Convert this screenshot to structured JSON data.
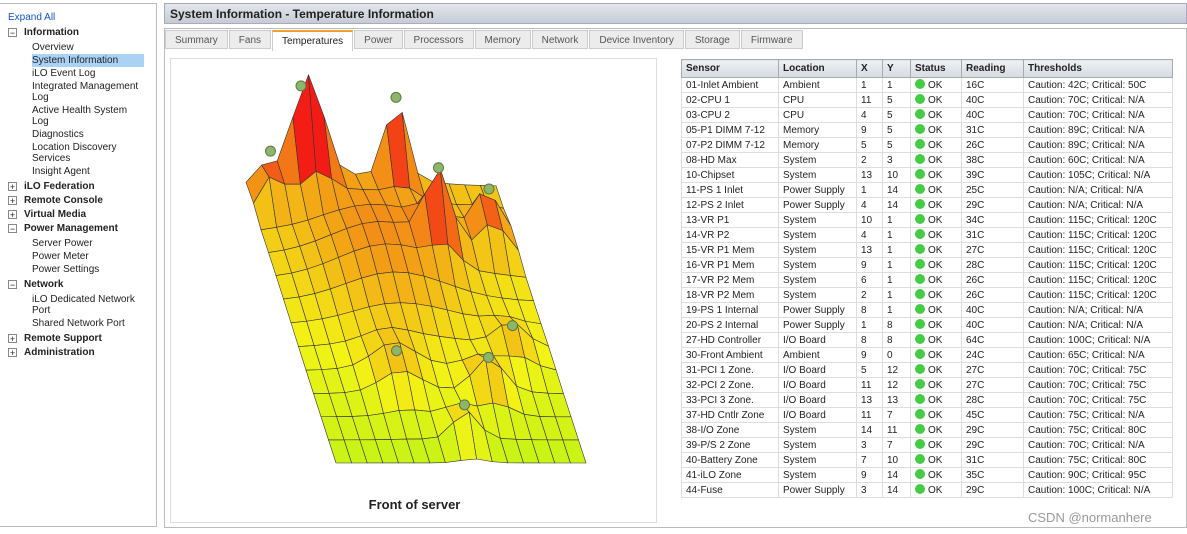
{
  "sidebar": {
    "expand_all": "Expand All",
    "sections": [
      {
        "title": "Information",
        "expanded": true,
        "items": [
          {
            "label": "Overview"
          },
          {
            "label": "System Information",
            "selected": true
          },
          {
            "label": "iLO Event Log"
          },
          {
            "label": "Integrated Management Log"
          },
          {
            "label": "Active Health System Log"
          },
          {
            "label": "Diagnostics"
          },
          {
            "label": "Location Discovery Services"
          },
          {
            "label": "Insight Agent"
          }
        ]
      },
      {
        "title": "iLO Federation",
        "expanded": false,
        "items": []
      },
      {
        "title": "Remote Console",
        "expanded": false,
        "items": []
      },
      {
        "title": "Virtual Media",
        "expanded": false,
        "items": []
      },
      {
        "title": "Power Management",
        "expanded": true,
        "items": [
          {
            "label": "Server Power"
          },
          {
            "label": "Power Meter"
          },
          {
            "label": "Power Settings"
          }
        ]
      },
      {
        "title": "Network",
        "expanded": true,
        "items": [
          {
            "label": "iLO Dedicated Network Port"
          },
          {
            "label": "Shared Network Port"
          }
        ]
      },
      {
        "title": "Remote Support",
        "expanded": false,
        "items": []
      },
      {
        "title": "Administration",
        "expanded": false,
        "items": []
      }
    ]
  },
  "header": {
    "title": "System Information - Temperature Information"
  },
  "tabs": [
    {
      "label": "Summary"
    },
    {
      "label": "Fans"
    },
    {
      "label": "Temperatures",
      "active": true
    },
    {
      "label": "Power"
    },
    {
      "label": "Processors"
    },
    {
      "label": "Memory"
    },
    {
      "label": "Network"
    },
    {
      "label": "Device Inventory"
    },
    {
      "label": "Storage"
    },
    {
      "label": "Firmware"
    }
  ],
  "graph": {
    "caption": "Front of server"
  },
  "table": {
    "columns": [
      "Sensor",
      "Location",
      "X",
      "Y",
      "Status",
      "Reading",
      "Thresholds"
    ],
    "rows": [
      [
        "01-Inlet Ambient",
        "Ambient",
        1,
        1,
        "OK",
        "16C",
        "Caution: 42C; Critical: 50C"
      ],
      [
        "02-CPU 1",
        "CPU",
        11,
        5,
        "OK",
        "40C",
        "Caution: 70C; Critical: N/A"
      ],
      [
        "03-CPU 2",
        "CPU",
        4,
        5,
        "OK",
        "40C",
        "Caution: 70C; Critical: N/A"
      ],
      [
        "05-P1 DIMM 7-12",
        "Memory",
        9,
        5,
        "OK",
        "31C",
        "Caution: 89C; Critical: N/A"
      ],
      [
        "07-P2 DIMM 7-12",
        "Memory",
        5,
        5,
        "OK",
        "26C",
        "Caution: 89C; Critical: N/A"
      ],
      [
        "08-HD Max",
        "System",
        2,
        3,
        "OK",
        "38C",
        "Caution: 60C; Critical: N/A"
      ],
      [
        "10-Chipset",
        "System",
        13,
        10,
        "OK",
        "39C",
        "Caution: 105C; Critical: N/A"
      ],
      [
        "11-PS 1 Inlet",
        "Power Supply",
        1,
        14,
        "OK",
        "25C",
        "Caution: N/A; Critical: N/A"
      ],
      [
        "12-PS 2 Inlet",
        "Power Supply",
        4,
        14,
        "OK",
        "29C",
        "Caution: N/A; Critical: N/A"
      ],
      [
        "13-VR P1",
        "System",
        10,
        1,
        "OK",
        "34C",
        "Caution: 115C; Critical: 120C"
      ],
      [
        "14-VR P2",
        "System",
        4,
        1,
        "OK",
        "31C",
        "Caution: 115C; Critical: 120C"
      ],
      [
        "15-VR P1 Mem",
        "System",
        13,
        1,
        "OK",
        "27C",
        "Caution: 115C; Critical: 120C"
      ],
      [
        "16-VR P1 Mem",
        "System",
        9,
        1,
        "OK",
        "28C",
        "Caution: 115C; Critical: 120C"
      ],
      [
        "17-VR P2 Mem",
        "System",
        6,
        1,
        "OK",
        "26C",
        "Caution: 115C; Critical: 120C"
      ],
      [
        "18-VR P2 Mem",
        "System",
        2,
        1,
        "OK",
        "26C",
        "Caution: 115C; Critical: 120C"
      ],
      [
        "19-PS 1 Internal",
        "Power Supply",
        8,
        1,
        "OK",
        "40C",
        "Caution: N/A; Critical: N/A"
      ],
      [
        "20-PS 2 Internal",
        "Power Supply",
        1,
        8,
        "OK",
        "40C",
        "Caution: N/A; Critical: N/A"
      ],
      [
        "27-HD Controller",
        "I/O Board",
        8,
        8,
        "OK",
        "64C",
        "Caution: 100C; Critical: N/A"
      ],
      [
        "30-Front Ambient",
        "Ambient",
        9,
        0,
        "OK",
        "24C",
        "Caution: 65C; Critical: N/A"
      ],
      [
        "31-PCI 1 Zone.",
        "I/O Board",
        5,
        12,
        "OK",
        "27C",
        "Caution: 70C; Critical: 75C"
      ],
      [
        "32-PCI 2 Zone.",
        "I/O Board",
        11,
        12,
        "OK",
        "27C",
        "Caution: 70C; Critical: 75C"
      ],
      [
        "33-PCI 3 Zone.",
        "I/O Board",
        13,
        13,
        "OK",
        "28C",
        "Caution: 70C; Critical: 75C"
      ],
      [
        "37-HD Cntlr Zone",
        "I/O Board",
        11,
        7,
        "OK",
        "45C",
        "Caution: 75C; Critical: N/A"
      ],
      [
        "38-I/O Zone",
        "System",
        14,
        11,
        "OK",
        "29C",
        "Caution: 75C; Critical: 80C"
      ],
      [
        "39-P/S 2 Zone",
        "System",
        3,
        7,
        "OK",
        "29C",
        "Caution: 70C; Critical: N/A"
      ],
      [
        "40-Battery Zone",
        "System",
        7,
        10,
        "OK",
        "31C",
        "Caution: 75C; Critical: 80C"
      ],
      [
        "41-iLO Zone",
        "System",
        9,
        14,
        "OK",
        "35C",
        "Caution: 90C; Critical: 95C"
      ],
      [
        "44-Fuse",
        "Power Supply",
        3,
        14,
        "OK",
        "29C",
        "Caution: 100C; Critical: N/A"
      ]
    ]
  },
  "watermark": "CSDN @normanhere"
}
